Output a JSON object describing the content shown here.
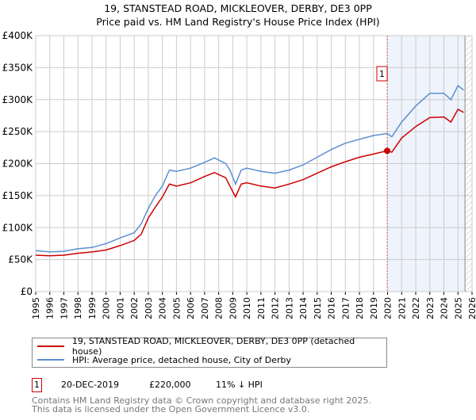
{
  "header": {
    "title": "19, STANSTEAD ROAD, MICKLEOVER, DERBY, DE3 0PP",
    "subtitle": "Price paid vs. HM Land Registry's House Price Index (HPI)"
  },
  "chart_data": {
    "type": "line",
    "title": "19, STANSTEAD ROAD, MICKLEOVER, DERBY, DE3 0PP",
    "subtitle": "Price paid vs. HM Land Registry's House Price Index (HPI)",
    "xlim": [
      1995,
      2026
    ],
    "ylim": [
      0,
      400000
    ],
    "x_ticks": [
      "1995",
      "1996",
      "1997",
      "1998",
      "1999",
      "2000",
      "2001",
      "2002",
      "2003",
      "2004",
      "2005",
      "2006",
      "2007",
      "2008",
      "2009",
      "2010",
      "2011",
      "2012",
      "2013",
      "2014",
      "2015",
      "2016",
      "2017",
      "2018",
      "2019",
      "2020",
      "2021",
      "2022",
      "2023",
      "2024",
      "2025",
      "2026"
    ],
    "y_ticks": [
      {
        "v": 0,
        "label": "£0"
      },
      {
        "v": 50000,
        "label": "£50K"
      },
      {
        "v": 100000,
        "label": "£100K"
      },
      {
        "v": 150000,
        "label": "£150K"
      },
      {
        "v": 200000,
        "label": "£200K"
      },
      {
        "v": 250000,
        "label": "£250K"
      },
      {
        "v": 300000,
        "label": "£300K"
      },
      {
        "v": 350000,
        "label": "£350K"
      },
      {
        "v": 400000,
        "label": "£400K"
      }
    ],
    "grid": true,
    "shaded_range": [
      2019.97,
      2025.5
    ],
    "hatched_range": [
      2025.5,
      2026
    ],
    "series": [
      {
        "name": "19, STANSTEAD ROAD, MICKLEOVER, DERBY, DE3 0PP (detached house)",
        "color": "#cc0000",
        "x": [
          1995,
          1996,
          1997,
          1998,
          1999,
          2000,
          2001,
          2002,
          2002.5,
          2003,
          2003.5,
          2004,
          2004.5,
          2005,
          2006,
          2007,
          2007.7,
          2008.5,
          2008.8,
          2009.2,
          2009.6,
          2010,
          2011,
          2012,
          2013,
          2014,
          2015,
          2016,
          2017,
          2018,
          2019,
          2019.97,
          2020.3,
          2021,
          2022,
          2023,
          2024,
          2024.5,
          2025,
          2025.4
        ],
        "y": [
          57000,
          56000,
          57000,
          60000,
          62000,
          65000,
          72000,
          80000,
          90000,
          115000,
          132000,
          148000,
          168000,
          165000,
          170000,
          180000,
          186000,
          178000,
          165000,
          148000,
          168000,
          170000,
          165000,
          162000,
          168000,
          175000,
          185000,
          195000,
          203000,
          210000,
          215000,
          220000,
          218000,
          240000,
          258000,
          272000,
          273000,
          265000,
          285000,
          280000
        ]
      },
      {
        "name": "HPI: Average price, detached house, City of Derby",
        "color": "#5b8fd0",
        "x": [
          1995,
          1996,
          1997,
          1998,
          1999,
          2000,
          2001,
          2002,
          2002.5,
          2003,
          2003.5,
          2004,
          2004.5,
          2005,
          2006,
          2007,
          2007.7,
          2008.5,
          2008.8,
          2009.2,
          2009.6,
          2010,
          2011,
          2012,
          2013,
          2014,
          2015,
          2016,
          2017,
          2018,
          2019,
          2019.97,
          2020.3,
          2021,
          2022,
          2023,
          2024,
          2024.5,
          2025,
          2025.4
        ],
        "y": [
          64000,
          62000,
          63000,
          67000,
          69000,
          75000,
          84000,
          92000,
          106000,
          130000,
          150000,
          165000,
          190000,
          188000,
          193000,
          202000,
          209000,
          200000,
          190000,
          168000,
          190000,
          193000,
          188000,
          185000,
          190000,
          198000,
          210000,
          222000,
          232000,
          238000,
          244000,
          247000,
          242000,
          265000,
          290000,
          310000,
          310000,
          300000,
          322000,
          315000
        ]
      }
    ],
    "sales": [
      {
        "id": "1",
        "x": 2019.97,
        "y": 220000
      }
    ]
  },
  "legend": {
    "items": [
      {
        "label": "19, STANSTEAD ROAD, MICKLEOVER, DERBY, DE3 0PP (detached house)",
        "color": "#cc0000"
      },
      {
        "label": "HPI: Average price, detached house, City of Derby",
        "color": "#5b8fd0"
      }
    ]
  },
  "transactions": [
    {
      "id": "1",
      "date": "20-DEC-2019",
      "price": "£220,000",
      "hpi_diff": "11% ↓ HPI"
    }
  ],
  "footer": {
    "line1": "Contains HM Land Registry data © Crown copyright and database right 2025.",
    "line2": "This data is licensed under the Open Government Licence v3.0."
  }
}
